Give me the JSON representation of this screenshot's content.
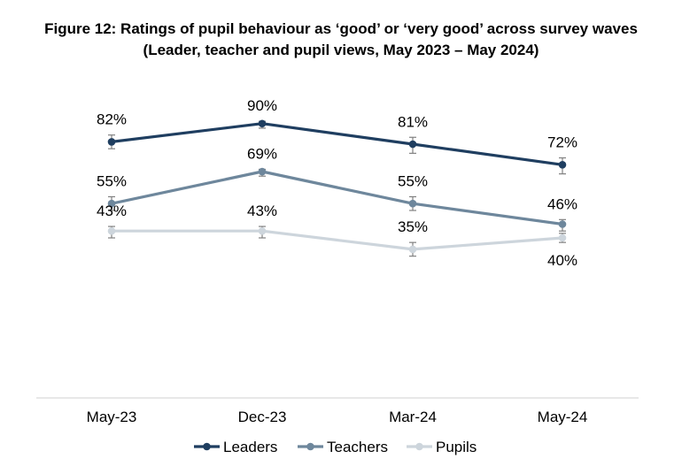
{
  "chart_data": {
    "type": "line",
    "title": "Figure 12: Ratings of pupil behaviour as ‘good’ or ‘very good’ across survey waves",
    "subtitle": "(Leader, teacher and pupil views, May 2023 – May 2024)",
    "categories": [
      "May-23",
      "Dec-23",
      "Mar-24",
      "May-24"
    ],
    "ylim": [
      0,
      100
    ],
    "grid": false,
    "legend_position": "bottom",
    "series": [
      {
        "name": "Leaders",
        "color": "#1f3e60",
        "values": [
          82,
          90,
          81,
          72
        ],
        "labels": [
          "82%",
          "90%",
          "81%",
          "72%"
        ],
        "error_low": [
          79,
          88,
          77,
          68
        ],
        "error_high": [
          85,
          91,
          84,
          75
        ]
      },
      {
        "name": "Teachers",
        "color": "#6e879c",
        "values": [
          55,
          69,
          55,
          46
        ],
        "labels": [
          "55%",
          "69%",
          "55%",
          "46%"
        ],
        "error_low": [
          52,
          67,
          52,
          43
        ],
        "error_high": [
          58,
          70,
          58,
          48
        ]
      },
      {
        "name": "Pupils",
        "color": "#cdd5dc",
        "values": [
          43,
          43,
          35,
          40
        ],
        "labels": [
          "43%",
          "43%",
          "35%",
          "40%"
        ],
        "error_low": [
          40,
          40,
          32,
          38
        ],
        "error_high": [
          45,
          45,
          38,
          42
        ]
      }
    ]
  }
}
